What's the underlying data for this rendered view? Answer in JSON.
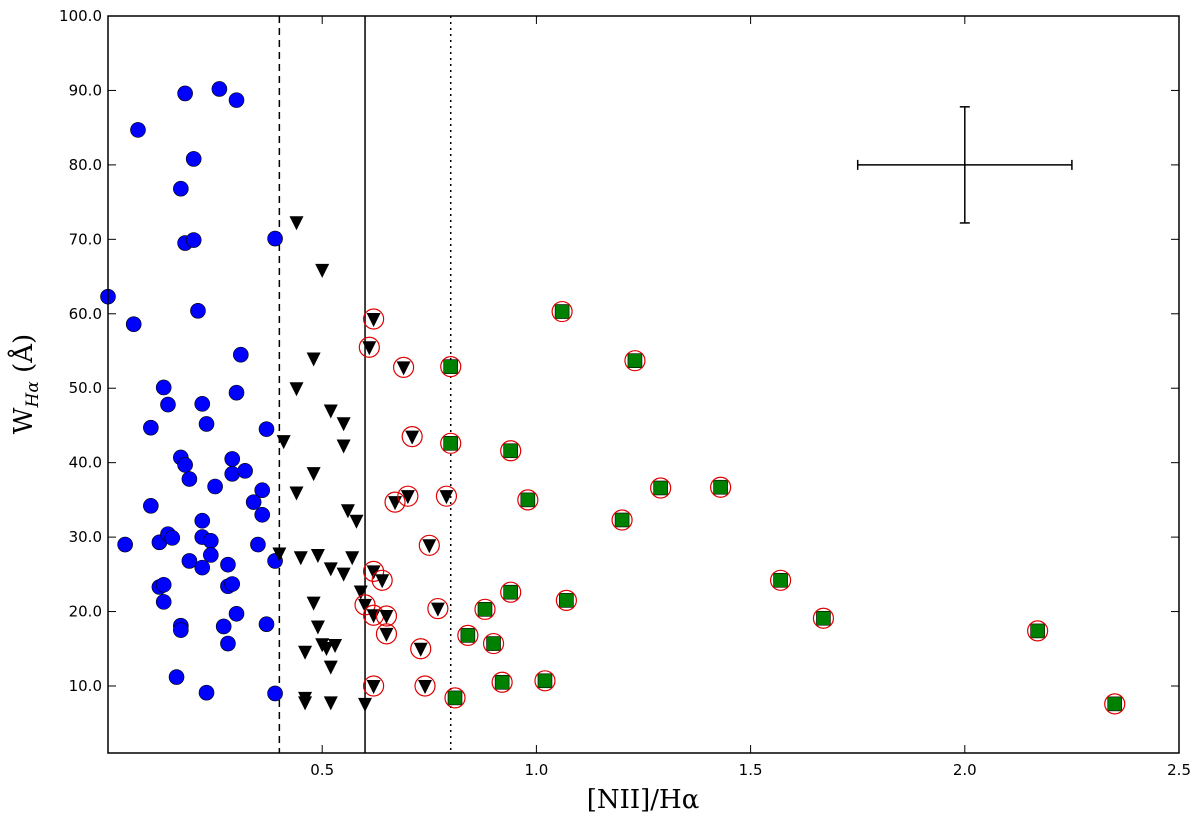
{
  "chart_data": {
    "type": "scatter",
    "xlabel": "[NII]/Hα",
    "ylabel": "W_Hα (Å)",
    "xlim": [
      0.0,
      2.5
    ],
    "ylim": [
      1.0,
      100.0
    ],
    "xticks": [
      {
        "v": 0.5,
        "label": "0.5"
      },
      {
        "v": 1.0,
        "label": "1.0"
      },
      {
        "v": 1.5,
        "label": "1.5"
      },
      {
        "v": 2.0,
        "label": "2.0"
      },
      {
        "v": 2.5,
        "label": "2.5"
      }
    ],
    "yticks": [
      {
        "v": 10,
        "label": "10.0"
      },
      {
        "v": 20,
        "label": "20.0"
      },
      {
        "v": 30,
        "label": "30.0"
      },
      {
        "v": 40,
        "label": "40.0"
      },
      {
        "v": 50,
        "label": "50.0"
      },
      {
        "v": 60,
        "label": "60.0"
      },
      {
        "v": 70,
        "label": "70.0"
      },
      {
        "v": 80,
        "label": "80.0"
      },
      {
        "v": 90,
        "label": "90.0"
      },
      {
        "v": 100,
        "label": "100.0"
      }
    ],
    "vlines": [
      {
        "x": 0.4,
        "style": "dashed"
      },
      {
        "x": 0.6,
        "style": "solid"
      },
      {
        "x": 0.8,
        "style": "dotted"
      }
    ],
    "error_bar": {
      "x": 2.0,
      "y": 80.0,
      "xerr": 0.25,
      "yerr": 7.8
    },
    "series": [
      {
        "marker": "circle",
        "color": "#0000ff",
        "ring": false,
        "points": [
          [
            0.0,
            62.3
          ],
          [
            0.04,
            29.0
          ],
          [
            0.06,
            58.6
          ],
          [
            0.07,
            84.7
          ],
          [
            0.1,
            34.2
          ],
          [
            0.1,
            44.7
          ],
          [
            0.12,
            23.3
          ],
          [
            0.12,
            29.3
          ],
          [
            0.13,
            50.1
          ],
          [
            0.13,
            23.6
          ],
          [
            0.13,
            21.3
          ],
          [
            0.14,
            47.8
          ],
          [
            0.14,
            30.4
          ],
          [
            0.15,
            29.9
          ],
          [
            0.16,
            11.2
          ],
          [
            0.17,
            40.7
          ],
          [
            0.17,
            18.1
          ],
          [
            0.17,
            17.5
          ],
          [
            0.17,
            76.8
          ],
          [
            0.18,
            69.5
          ],
          [
            0.18,
            39.7
          ],
          [
            0.18,
            89.6
          ],
          [
            0.19,
            37.8
          ],
          [
            0.19,
            26.8
          ],
          [
            0.2,
            80.8
          ],
          [
            0.2,
            69.9
          ],
          [
            0.21,
            60.4
          ],
          [
            0.22,
            47.9
          ],
          [
            0.22,
            32.2
          ],
          [
            0.22,
            30.0
          ],
          [
            0.22,
            25.9
          ],
          [
            0.23,
            45.2
          ],
          [
            0.23,
            9.1
          ],
          [
            0.24,
            29.5
          ],
          [
            0.24,
            27.6
          ],
          [
            0.25,
            36.8
          ],
          [
            0.26,
            90.2
          ],
          [
            0.27,
            18.0
          ],
          [
            0.28,
            15.7
          ],
          [
            0.28,
            26.3
          ],
          [
            0.28,
            23.4
          ],
          [
            0.29,
            40.5
          ],
          [
            0.29,
            38.5
          ],
          [
            0.29,
            23.7
          ],
          [
            0.3,
            49.4
          ],
          [
            0.3,
            88.7
          ],
          [
            0.3,
            19.7
          ],
          [
            0.31,
            54.5
          ],
          [
            0.32,
            38.9
          ],
          [
            0.34,
            34.7
          ],
          [
            0.35,
            29.0
          ],
          [
            0.36,
            33.0
          ],
          [
            0.36,
            36.3
          ],
          [
            0.37,
            18.3
          ],
          [
            0.37,
            44.5
          ],
          [
            0.39,
            70.1
          ],
          [
            0.39,
            26.8
          ],
          [
            0.39,
            9.0
          ]
        ]
      },
      {
        "marker": "triangle",
        "color": "#000000",
        "ring": false,
        "points": [
          [
            0.4,
            27.8
          ],
          [
            0.41,
            42.9
          ],
          [
            0.44,
            72.3
          ],
          [
            0.44,
            50.0
          ],
          [
            0.44,
            36.0
          ],
          [
            0.45,
            27.3
          ],
          [
            0.46,
            14.6
          ],
          [
            0.46,
            8.4
          ],
          [
            0.46,
            7.8
          ],
          [
            0.48,
            54.0
          ],
          [
            0.48,
            38.6
          ],
          [
            0.48,
            21.2
          ],
          [
            0.49,
            18.0
          ],
          [
            0.49,
            27.6
          ],
          [
            0.5,
            65.9
          ],
          [
            0.5,
            15.6
          ],
          [
            0.51,
            15.1
          ],
          [
            0.52,
            47.0
          ],
          [
            0.52,
            25.8
          ],
          [
            0.52,
            12.6
          ],
          [
            0.52,
            7.8
          ],
          [
            0.53,
            15.5
          ],
          [
            0.55,
            45.3
          ],
          [
            0.55,
            42.3
          ],
          [
            0.55,
            25.1
          ],
          [
            0.56,
            33.6
          ],
          [
            0.57,
            27.3
          ],
          [
            0.58,
            32.2
          ],
          [
            0.59,
            22.7
          ],
          [
            0.6,
            7.6
          ]
        ]
      },
      {
        "marker": "triangle",
        "color": "#000000",
        "ring": true,
        "points": [
          [
            0.6,
            20.9
          ],
          [
            0.61,
            55.5
          ],
          [
            0.62,
            59.3
          ],
          [
            0.62,
            25.4
          ],
          [
            0.62,
            19.5
          ],
          [
            0.62,
            10.0
          ],
          [
            0.64,
            24.2
          ],
          [
            0.65,
            19.4
          ],
          [
            0.65,
            17.0
          ],
          [
            0.67,
            34.7
          ],
          [
            0.69,
            52.8
          ],
          [
            0.7,
            35.5
          ],
          [
            0.71,
            43.5
          ],
          [
            0.73,
            15.0
          ],
          [
            0.74,
            10.0
          ],
          [
            0.75,
            28.9
          ],
          [
            0.77,
            20.4
          ],
          [
            0.79,
            35.5
          ]
        ]
      },
      {
        "marker": "square",
        "color": "#008000",
        "ring": true,
        "points": [
          [
            0.8,
            52.9
          ],
          [
            0.8,
            42.6
          ],
          [
            0.81,
            8.4
          ],
          [
            0.84,
            16.8
          ],
          [
            0.88,
            20.3
          ],
          [
            0.9,
            15.7
          ],
          [
            0.92,
            10.5
          ],
          [
            0.94,
            22.6
          ],
          [
            0.94,
            41.6
          ],
          [
            0.98,
            35.0
          ],
          [
            1.02,
            10.7
          ],
          [
            1.06,
            60.3
          ],
          [
            1.07,
            21.5
          ],
          [
            1.2,
            32.3
          ],
          [
            1.23,
            53.7
          ],
          [
            1.29,
            36.6
          ],
          [
            1.43,
            36.7
          ],
          [
            1.57,
            24.2
          ],
          [
            1.67,
            19.1
          ],
          [
            2.17,
            17.4
          ],
          [
            2.35,
            7.6
          ]
        ]
      }
    ]
  }
}
